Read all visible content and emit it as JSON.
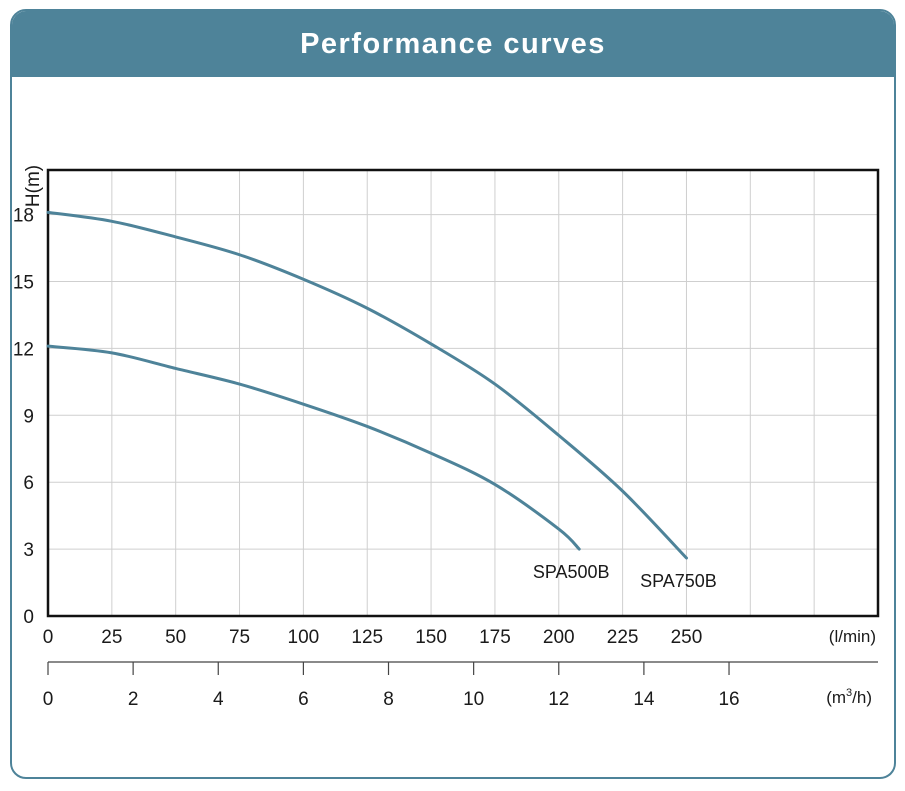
{
  "header": {
    "title": "Performance curves"
  },
  "colors": {
    "accent": "#4e8399",
    "curve": "#4e8399",
    "grid": "#cfcfcf",
    "frame": "#111111"
  },
  "chart_data": {
    "type": "line",
    "title": "Performance curves",
    "ylabel": "H(m)",
    "xlabel": "(l/min)",
    "x2label_prefix": "(m",
    "x2label_sup": "3",
    "x2label_suffix": "/h)",
    "ylim": [
      0,
      20
    ],
    "xlim": [
      0,
      325
    ],
    "y_ticks": [
      0,
      3,
      6,
      9,
      12,
      15,
      18
    ],
    "x_ticks": [
      0,
      25,
      50,
      75,
      100,
      125,
      150,
      175,
      200,
      225,
      250
    ],
    "x2_ticks": [
      0,
      2,
      4,
      6,
      8,
      10,
      12,
      14,
      16
    ],
    "x2_factor_lpm_per_m3h": 16.6667,
    "grid": true,
    "series": [
      {
        "name": "SPA500B",
        "x": [
          0,
          25,
          50,
          75,
          100,
          125,
          150,
          175,
          200,
          208
        ],
        "y": [
          12.1,
          11.8,
          11.1,
          10.4,
          9.5,
          8.5,
          7.3,
          5.9,
          3.9,
          3.0
        ]
      },
      {
        "name": "SPA750B",
        "x": [
          0,
          25,
          50,
          75,
          100,
          125,
          150,
          175,
          200,
          225,
          250
        ],
        "y": [
          18.1,
          17.7,
          17.0,
          16.2,
          15.1,
          13.8,
          12.2,
          10.4,
          8.1,
          5.6,
          2.6
        ]
      }
    ]
  }
}
